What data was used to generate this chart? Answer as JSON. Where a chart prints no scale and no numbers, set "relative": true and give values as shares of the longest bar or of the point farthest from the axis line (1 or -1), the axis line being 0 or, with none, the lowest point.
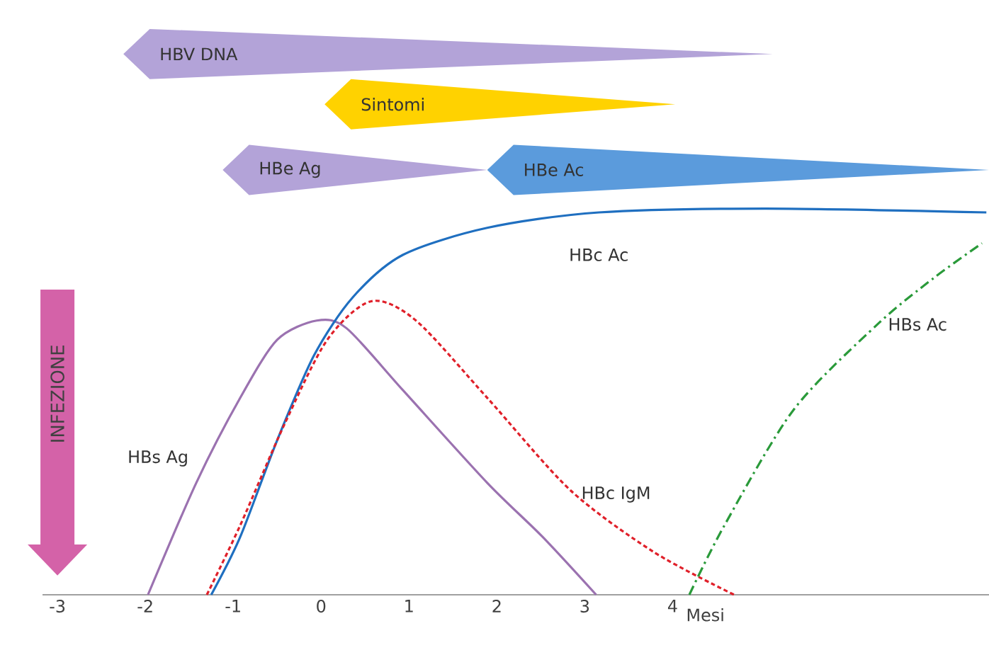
{
  "chart_data": {
    "type": "line",
    "relative": true,
    "xlabel": "Mesi",
    "xlim": [
      -3.17,
      7.6
    ],
    "xticks": [
      -3,
      -2,
      -1,
      0,
      1,
      2,
      3,
      4
    ],
    "series": [
      {
        "name": "HBs Ag",
        "color": "#9b72b0",
        "line_style": "solid",
        "x": [
          -1.97,
          -1.42,
          -0.92,
          -0.5,
          -0.05,
          0.29,
          0.93,
          1.89,
          2.52,
          3.13
        ],
        "values": [
          0,
          0.29,
          0.51,
          0.66,
          0.71,
          0.69,
          0.53,
          0.29,
          0.15,
          0
        ]
      },
      {
        "name": "HBc Ac",
        "color": "#1f6fc0",
        "line_style": "solid",
        "x": [
          -1.25,
          -0.92,
          -0.5,
          -0.08,
          0.36,
          0.93,
          1.89,
          3.16,
          5.06,
          7.57
        ],
        "values": [
          0,
          0.15,
          0.4,
          0.62,
          0.77,
          0.88,
          0.95,
          0.99,
          1,
          0.99
        ]
      },
      {
        "name": "HBc  IgM",
        "color": "#e0202a",
        "line_style": "dashed",
        "x": [
          -1.3,
          -0.92,
          -0.42,
          0.07,
          0.57,
          1.08,
          1.89,
          2.84,
          3.79,
          4.7
        ],
        "values": [
          0,
          0.18,
          0.44,
          0.66,
          0.76,
          0.71,
          0.51,
          0.27,
          0.11,
          0
        ]
      },
      {
        "name": "HBs Ac",
        "color": "#2a9a3a",
        "line_style": "dashdot",
        "x": [
          4.19,
          4.59,
          5.38,
          6.33,
          6.97,
          7.52
        ],
        "values": [
          0,
          0.18,
          0.48,
          0.7,
          0.82,
          0.91
        ]
      }
    ],
    "annotations": [
      "HBV DNA",
      "Sintomi",
      "HBe Ag",
      "HBe Ac"
    ],
    "ref_lines": [
      {
        "axis": "x",
        "value": -3,
        "label": "INFEZIONE",
        "color": "#d462a8"
      }
    ]
  }
}
